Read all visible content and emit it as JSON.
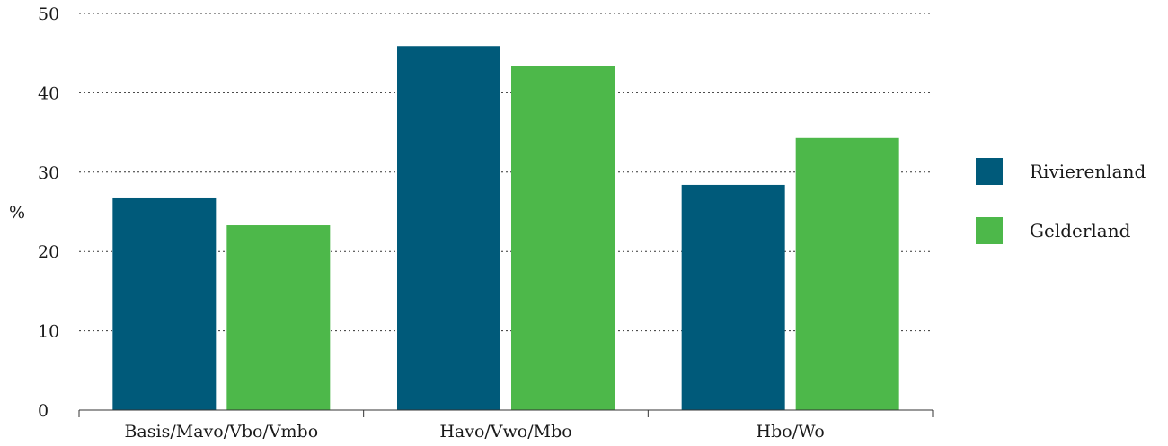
{
  "chart_data": {
    "type": "bar",
    "categories": [
      "Basis/Mavo/Vbo/Vmbo",
      "Havo/Vwo/Mbo",
      "Hbo/Wo"
    ],
    "series": [
      {
        "name": "Rivierenland",
        "values": [
          26.7,
          45.9,
          28.4
        ],
        "color": "#005a7a"
      },
      {
        "name": "Gelderland",
        "values": [
          23.3,
          43.4,
          34.3
        ],
        "color": "#4db84a"
      }
    ],
    "ylabel": "%",
    "ylim": [
      0,
      50
    ],
    "yticks": [
      0,
      10,
      20,
      30,
      40,
      50
    ],
    "grid": true,
    "legend_position": "right"
  }
}
